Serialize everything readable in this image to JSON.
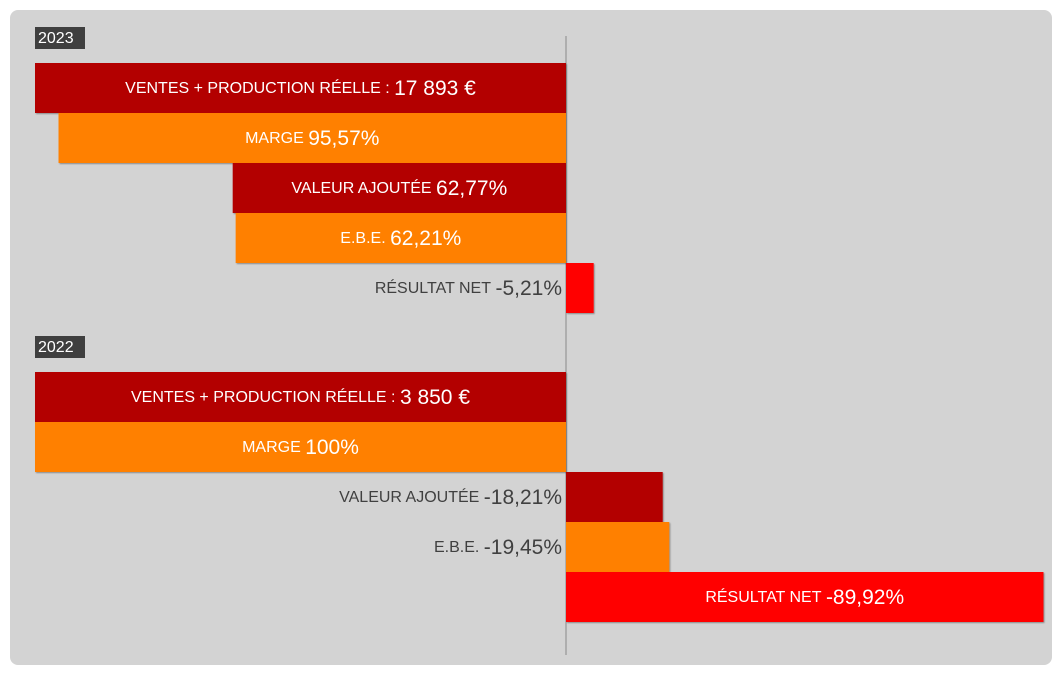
{
  "chart_data": {
    "type": "bar",
    "groups": [
      {
        "year": "2023",
        "items": [
          {
            "name": "VENTES + PRODUCTION RÉELLE :",
            "value": 17893,
            "value_label": "17 893 €",
            "color": "#b30000"
          },
          {
            "name": "MARGE",
            "value": 95.57,
            "value_label": "95,57%",
            "color": "#ff8000"
          },
          {
            "name": "VALEUR AJOUTÉE",
            "value": 62.77,
            "value_label": "62,77%",
            "color": "#b30000"
          },
          {
            "name": "E.B.E.",
            "value": 62.21,
            "value_label": "62,21%",
            "color": "#ff8000"
          },
          {
            "name": "RÉSULTAT NET",
            "value": -5.21,
            "value_label": "-5,21%",
            "color": "#ff0000"
          }
        ]
      },
      {
        "year": "2022",
        "items": [
          {
            "name": "VENTES + PRODUCTION RÉELLE :",
            "value": 3850,
            "value_label": "3 850 €",
            "color": "#b30000"
          },
          {
            "name": "MARGE",
            "value": 100,
            "value_label": "100%",
            "color": "#ff8000"
          },
          {
            "name": "VALEUR AJOUTÉE",
            "value": -18.21,
            "value_label": "-18,21%",
            "color": "#b30000"
          },
          {
            "name": "E.B.E.",
            "value": -19.45,
            "value_label": "-19,45%",
            "color": "#ff8000"
          },
          {
            "name": "RÉSULTAT NET",
            "value": -89.92,
            "value_label": "-89,92%",
            "color": "#ff0000"
          }
        ]
      }
    ]
  }
}
